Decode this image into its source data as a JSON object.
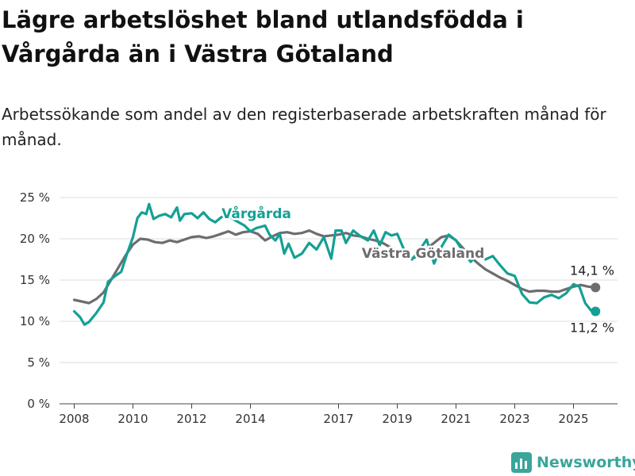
{
  "title": "Lägre arbetslöshet bland utlandsfödda i Vårgårda än i Västra Götaland",
  "subtitle": "Arbetssökande som andel av den registerbaserade arbetskraften månad för månad.",
  "brand": {
    "name": "Newsworthy",
    "icon": "newsworthy-logo-icon",
    "color": "#3aa59a"
  },
  "chart_data": {
    "type": "line",
    "title": "Lägre arbetslöshet bland utlandsfödda i Vårgårda än i Västra Götaland",
    "subtitle": "Arbetssökande som andel av den registerbaserade arbetskraften månad för månad.",
    "xlabel": "",
    "ylabel": "",
    "grid": true,
    "legend": "inline-labels",
    "xlim": [
      2007.5,
      2026.5
    ],
    "ylim": [
      0,
      25
    ],
    "x_ticks": [
      2008,
      2010,
      2012,
      2014,
      2017,
      2019,
      2021,
      2023,
      2025
    ],
    "x_tick_labels": [
      "2008",
      "2010",
      "2012",
      "2014",
      "2017",
      "2019",
      "2021",
      "2023",
      "2025"
    ],
    "y_ticks": [
      0,
      5,
      10,
      15,
      20,
      25
    ],
    "y_tick_labels": [
      "0 %",
      "5 %",
      "10 %",
      "15 %",
      "20 %",
      "25 %"
    ],
    "series": [
      {
        "name": "Västra Götaland",
        "color": "#6d6d6f",
        "end_label": "14,1 %",
        "points": [
          [
            2008.0,
            12.6
          ],
          [
            2008.25,
            12.4
          ],
          [
            2008.5,
            12.2
          ],
          [
            2008.75,
            12.7
          ],
          [
            2009.0,
            13.5
          ],
          [
            2009.25,
            15.0
          ],
          [
            2009.5,
            16.5
          ],
          [
            2009.75,
            18.0
          ],
          [
            2010.0,
            19.3
          ],
          [
            2010.25,
            20.0
          ],
          [
            2010.5,
            19.9
          ],
          [
            2010.75,
            19.6
          ],
          [
            2011.0,
            19.5
          ],
          [
            2011.25,
            19.8
          ],
          [
            2011.5,
            19.6
          ],
          [
            2011.75,
            19.9
          ],
          [
            2012.0,
            20.2
          ],
          [
            2012.25,
            20.3
          ],
          [
            2012.5,
            20.1
          ],
          [
            2012.75,
            20.3
          ],
          [
            2013.0,
            20.6
          ],
          [
            2013.25,
            20.9
          ],
          [
            2013.5,
            20.5
          ],
          [
            2013.75,
            20.8
          ],
          [
            2014.0,
            20.9
          ],
          [
            2014.25,
            20.6
          ],
          [
            2014.5,
            19.8
          ],
          [
            2014.75,
            20.3
          ],
          [
            2015.0,
            20.7
          ],
          [
            2015.25,
            20.8
          ],
          [
            2015.5,
            20.6
          ],
          [
            2015.75,
            20.7
          ],
          [
            2016.0,
            21.0
          ],
          [
            2016.25,
            20.6
          ],
          [
            2016.5,
            20.3
          ],
          [
            2016.75,
            20.4
          ],
          [
            2017.0,
            20.5
          ],
          [
            2017.25,
            20.7
          ],
          [
            2017.5,
            20.4
          ],
          [
            2017.75,
            20.3
          ],
          [
            2018.0,
            20.0
          ],
          [
            2018.25,
            19.8
          ],
          [
            2018.5,
            19.5
          ],
          [
            2018.75,
            19.0
          ],
          [
            2019.0,
            18.5
          ],
          [
            2019.25,
            17.8
          ],
          [
            2019.5,
            17.6
          ],
          [
            2019.75,
            18.0
          ],
          [
            2020.0,
            18.8
          ],
          [
            2020.25,
            19.5
          ],
          [
            2020.5,
            20.2
          ],
          [
            2020.75,
            20.4
          ],
          [
            2021.0,
            19.8
          ],
          [
            2021.25,
            18.8
          ],
          [
            2021.5,
            17.8
          ],
          [
            2021.75,
            17.0
          ],
          [
            2022.0,
            16.3
          ],
          [
            2022.25,
            15.8
          ],
          [
            2022.5,
            15.3
          ],
          [
            2022.75,
            14.9
          ],
          [
            2023.0,
            14.4
          ],
          [
            2023.25,
            13.9
          ],
          [
            2023.5,
            13.6
          ],
          [
            2023.75,
            13.7
          ],
          [
            2024.0,
            13.7
          ],
          [
            2024.25,
            13.6
          ],
          [
            2024.5,
            13.6
          ],
          [
            2024.75,
            13.9
          ],
          [
            2025.0,
            14.2
          ],
          [
            2025.25,
            14.4
          ],
          [
            2025.5,
            14.2
          ],
          [
            2025.75,
            14.1
          ]
        ]
      },
      {
        "name": "Vårgårda",
        "color": "#14a094",
        "end_label": "11,2 %",
        "points": [
          [
            2008.0,
            11.2
          ],
          [
            2008.2,
            10.5
          ],
          [
            2008.35,
            9.6
          ],
          [
            2008.5,
            9.9
          ],
          [
            2008.75,
            11.0
          ],
          [
            2009.0,
            12.3
          ],
          [
            2009.15,
            14.8
          ],
          [
            2009.4,
            15.5
          ],
          [
            2009.6,
            16.0
          ],
          [
            2009.8,
            18.2
          ],
          [
            2010.0,
            20.2
          ],
          [
            2010.15,
            22.5
          ],
          [
            2010.3,
            23.2
          ],
          [
            2010.45,
            23.0
          ],
          [
            2010.55,
            24.2
          ],
          [
            2010.7,
            22.4
          ],
          [
            2010.9,
            22.8
          ],
          [
            2011.1,
            23.0
          ],
          [
            2011.3,
            22.6
          ],
          [
            2011.5,
            23.8
          ],
          [
            2011.6,
            22.2
          ],
          [
            2011.75,
            23.0
          ],
          [
            2012.0,
            23.1
          ],
          [
            2012.2,
            22.5
          ],
          [
            2012.4,
            23.2
          ],
          [
            2012.6,
            22.4
          ],
          [
            2012.8,
            22.0
          ],
          [
            2013.0,
            22.6
          ],
          [
            2013.2,
            22.9
          ],
          [
            2013.4,
            22.4
          ],
          [
            2013.6,
            22.0
          ],
          [
            2013.8,
            21.6
          ],
          [
            2014.0,
            20.9
          ],
          [
            2014.2,
            21.3
          ],
          [
            2014.5,
            21.6
          ],
          [
            2014.65,
            20.5
          ],
          [
            2014.85,
            19.8
          ],
          [
            2015.0,
            20.6
          ],
          [
            2015.15,
            18.2
          ],
          [
            2015.3,
            19.4
          ],
          [
            2015.5,
            17.7
          ],
          [
            2015.75,
            18.2
          ],
          [
            2016.0,
            19.5
          ],
          [
            2016.25,
            18.7
          ],
          [
            2016.5,
            20.2
          ],
          [
            2016.75,
            17.6
          ],
          [
            2016.9,
            21.0
          ],
          [
            2017.1,
            21.0
          ],
          [
            2017.25,
            19.5
          ],
          [
            2017.5,
            21.0
          ],
          [
            2017.75,
            20.3
          ],
          [
            2018.0,
            19.8
          ],
          [
            2018.2,
            21.0
          ],
          [
            2018.4,
            19.2
          ],
          [
            2018.6,
            20.8
          ],
          [
            2018.8,
            20.4
          ],
          [
            2019.0,
            20.6
          ],
          [
            2019.25,
            18.5
          ],
          [
            2019.5,
            17.5
          ],
          [
            2019.75,
            18.6
          ],
          [
            2020.0,
            19.9
          ],
          [
            2020.25,
            17.0
          ],
          [
            2020.5,
            19.0
          ],
          [
            2020.75,
            20.5
          ],
          [
            2021.0,
            19.8
          ],
          [
            2021.25,
            18.4
          ],
          [
            2021.5,
            17.2
          ],
          [
            2021.75,
            18.2
          ],
          [
            2022.0,
            17.5
          ],
          [
            2022.25,
            17.9
          ],
          [
            2022.5,
            16.8
          ],
          [
            2022.75,
            15.8
          ],
          [
            2023.0,
            15.5
          ],
          [
            2023.25,
            13.3
          ],
          [
            2023.5,
            12.3
          ],
          [
            2023.75,
            12.2
          ],
          [
            2024.0,
            12.9
          ],
          [
            2024.25,
            13.2
          ],
          [
            2024.5,
            12.8
          ],
          [
            2024.75,
            13.4
          ],
          [
            2025.0,
            14.5
          ],
          [
            2025.2,
            14.2
          ],
          [
            2025.4,
            12.2
          ],
          [
            2025.6,
            11.3
          ],
          [
            2025.75,
            11.2
          ]
        ]
      }
    ]
  }
}
